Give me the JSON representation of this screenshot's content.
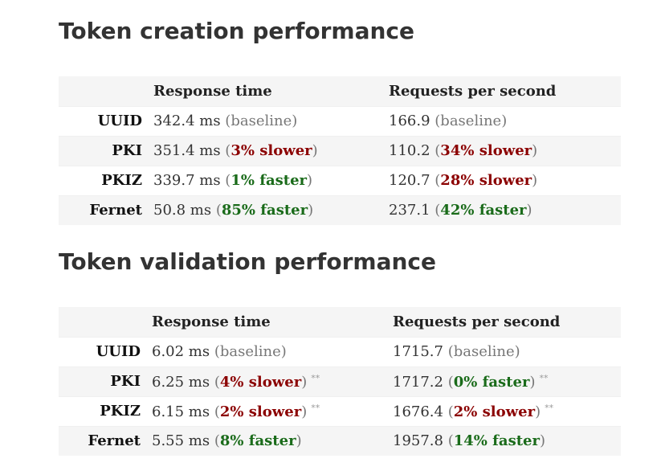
{
  "section1": {
    "title": "Token creation performance",
    "headers": [
      "",
      "Response time",
      "Requests per second"
    ],
    "rows": [
      {
        "name": "UUID",
        "rt_value": "342.4 ms",
        "rt_delta": "baseline",
        "rt_kind": "baseline",
        "rt_note": "",
        "rps_value": "166.9",
        "rps_delta": "baseline",
        "rps_kind": "baseline",
        "rps_note": ""
      },
      {
        "name": "PKI",
        "rt_value": "351.4 ms",
        "rt_delta": "3% slower",
        "rt_kind": "slower",
        "rt_note": "",
        "rps_value": "110.2",
        "rps_delta": "34% slower",
        "rps_kind": "slower",
        "rps_note": ""
      },
      {
        "name": "PKIZ",
        "rt_value": "339.7 ms",
        "rt_delta": "1% faster",
        "rt_kind": "faster",
        "rt_note": "",
        "rps_value": "120.7",
        "rps_delta": "28% slower",
        "rps_kind": "slower",
        "rps_note": ""
      },
      {
        "name": "Fernet",
        "rt_value": "50.8 ms",
        "rt_delta": "85% faster",
        "rt_kind": "faster",
        "rt_note": "",
        "rps_value": "237.1",
        "rps_delta": "42% faster",
        "rps_kind": "faster",
        "rps_note": ""
      }
    ]
  },
  "section2": {
    "title": "Token validation performance",
    "headers": [
      "",
      "Response time",
      "Requests per second"
    ],
    "rows": [
      {
        "name": "UUID",
        "rt_value": "6.02 ms",
        "rt_delta": "baseline",
        "rt_kind": "baseline",
        "rt_note": "",
        "rps_value": "1715.7",
        "rps_delta": "baseline",
        "rps_kind": "baseline",
        "rps_note": ""
      },
      {
        "name": "PKI",
        "rt_value": "6.25 ms",
        "rt_delta": "4% slower",
        "rt_kind": "slower",
        "rt_note": "**",
        "rps_value": "1717.2",
        "rps_delta": "0% faster",
        "rps_kind": "faster",
        "rps_note": "**"
      },
      {
        "name": "PKIZ",
        "rt_value": "6.15 ms",
        "rt_delta": "2% slower",
        "rt_kind": "slower",
        "rt_note": "**",
        "rps_value": "1676.4",
        "rps_delta": "2% slower",
        "rps_kind": "slower",
        "rps_note": "**"
      },
      {
        "name": "Fernet",
        "rt_value": "5.55 ms",
        "rt_delta": "8% faster",
        "rt_kind": "faster",
        "rt_note": "",
        "rps_value": "1957.8",
        "rps_delta": "14% faster",
        "rps_kind": "faster",
        "rps_note": ""
      }
    ]
  },
  "colors": {
    "slower": "#8b0000",
    "faster": "#1a6b1a",
    "baseline": "#777777",
    "stripe": "#f5f5f5",
    "title": "#333333"
  }
}
